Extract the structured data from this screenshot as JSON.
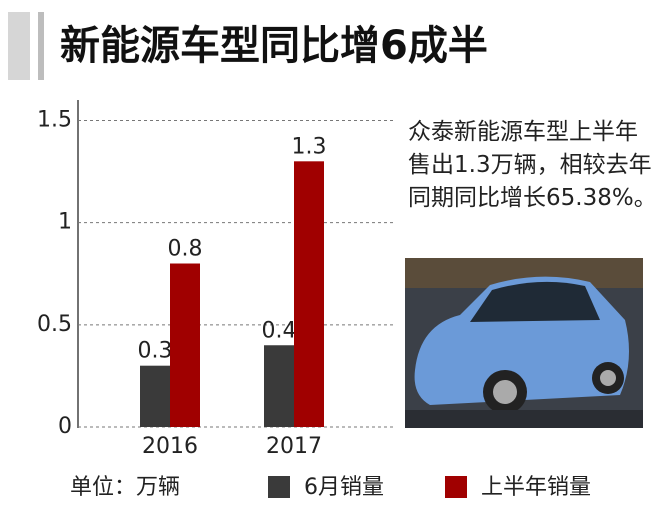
{
  "chart_data": {
    "type": "bar",
    "title": "新能源车型同比增6成半",
    "unit_label": "单位：万辆",
    "annotation": "众泰新能源车型上半年售出1.3万辆，相较去年同期同比增长65.38%。",
    "categories": [
      "2016",
      "2017"
    ],
    "series": [
      {
        "name": "6月销量",
        "color": "#3a3a3a",
        "values": [
          0.3,
          0.4
        ]
      },
      {
        "name": "上半年销量",
        "color": "#a00000",
        "values": [
          0.8,
          1.3
        ]
      }
    ],
    "ylim": [
      0,
      1.6
    ],
    "yticks": [
      0,
      0.5,
      1,
      1.5
    ],
    "grid": true
  }
}
